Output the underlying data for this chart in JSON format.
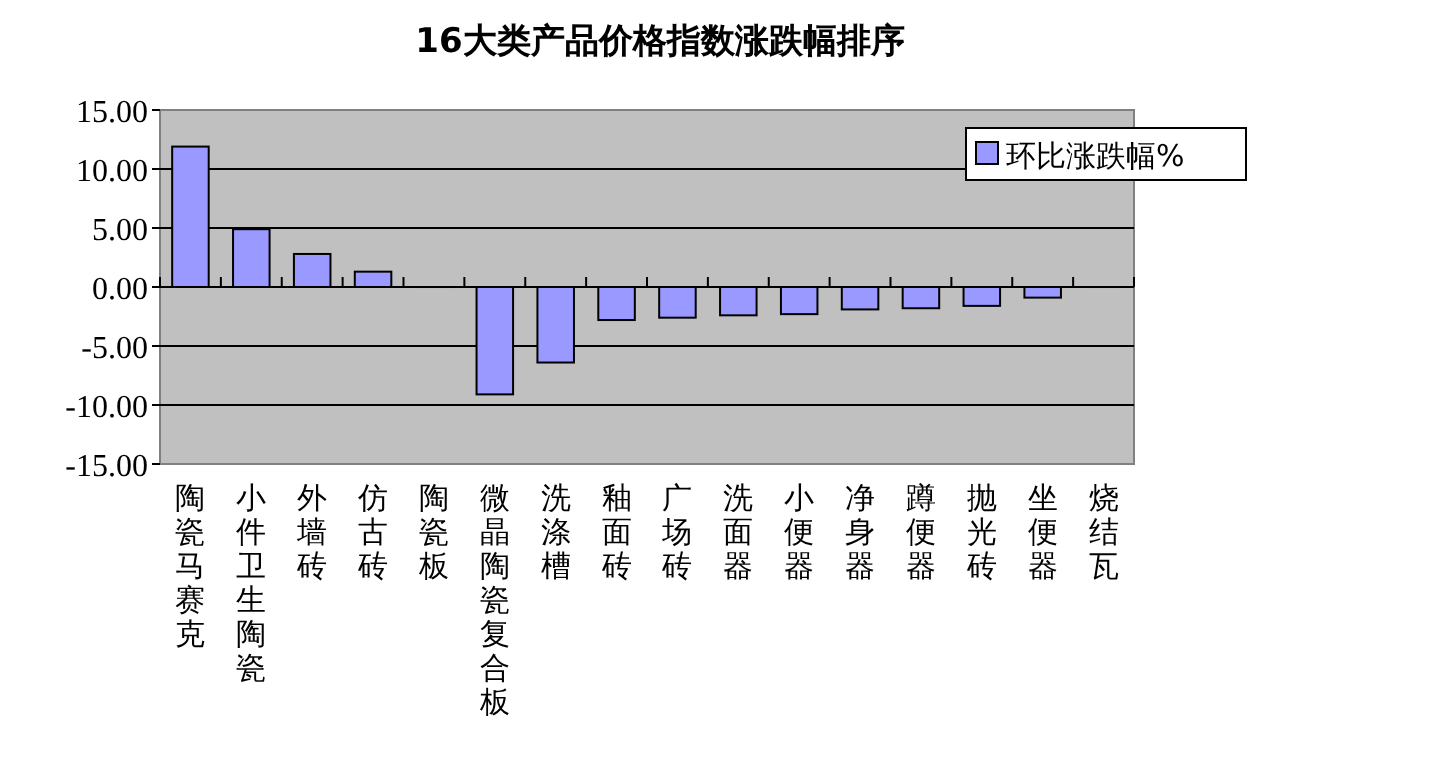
{
  "chart_data": {
    "type": "bar",
    "title": "16大类产品价格指数涨跌幅排序",
    "categories": [
      "陶瓷马赛克",
      "小件卫生陶瓷",
      "外墙砖",
      "仿古砖",
      "陶瓷板",
      "微晶陶瓷复合板",
      "洗涤槽",
      "釉面砖",
      "广场砖",
      "洗面器",
      "小便器",
      "净身器",
      "蹲便器",
      "抛光砖",
      "坐便器",
      "烧结瓦"
    ],
    "series": [
      {
        "name": "环比涨跌幅%",
        "color": "#9999ff",
        "values": [
          11.9,
          4.9,
          2.8,
          1.3,
          0,
          -9.1,
          -6.4,
          -2.8,
          -2.6,
          -2.4,
          -2.3,
          -1.9,
          -1.8,
          -1.6,
          -0.9,
          0
        ]
      }
    ],
    "ylim": [
      -15,
      15
    ],
    "yticks": [
      {
        "value": -15,
        "label": "-15.00"
      },
      {
        "value": -10,
        "label": "-10.00"
      },
      {
        "value": -5,
        "label": "-5.00"
      },
      {
        "value": 0,
        "label": "0.00"
      },
      {
        "value": 5,
        "label": "5.00"
      },
      {
        "value": 10,
        "label": "10.00"
      },
      {
        "value": 15,
        "label": "15.00"
      }
    ],
    "grid": "y",
    "legend": "top right"
  }
}
